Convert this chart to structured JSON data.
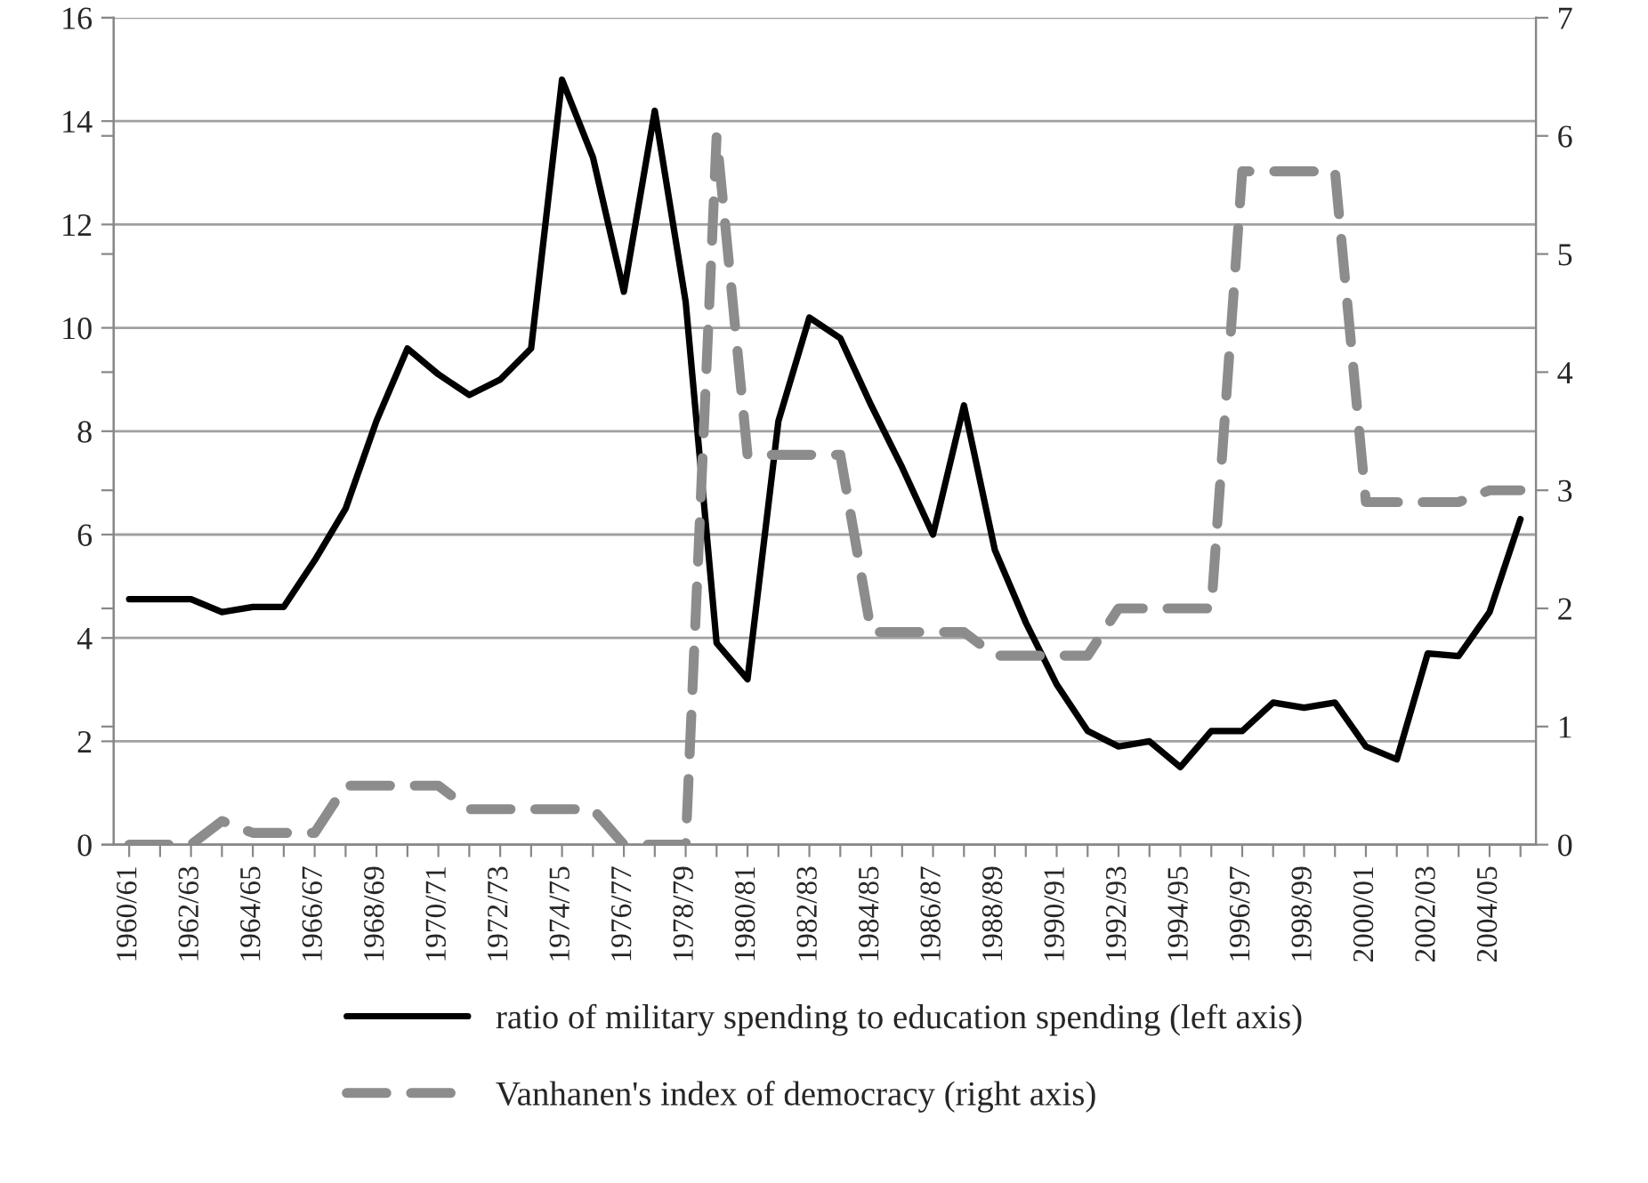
{
  "chart_data": {
    "type": "line",
    "categories": [
      "1960/61",
      null,
      "1962/63",
      null,
      "1964/65",
      null,
      "1966/67",
      null,
      "1968/69",
      null,
      "1970/71",
      null,
      "1972/73",
      null,
      "1974/75",
      null,
      "1976/77",
      null,
      "1978/79",
      null,
      "1980/81",
      null,
      "1982/83",
      null,
      "1984/85",
      null,
      "1986/87",
      null,
      "1988/89",
      null,
      "1990/91",
      null,
      "1992/93",
      null,
      "1994/95",
      null,
      "1996/97",
      null,
      "1998/99",
      null,
      "2000/01",
      null,
      "2002/03",
      null,
      "2004/05",
      null
    ],
    "series": [
      {
        "name": "ratio of military spending to education spending (left axis)",
        "color": "#000000",
        "line_style": "solid",
        "values": [
          4.75,
          4.75,
          4.75,
          4.5,
          4.6,
          4.6,
          5.5,
          6.5,
          8.2,
          9.6,
          9.1,
          8.7,
          9.0,
          9.6,
          14.8,
          13.3,
          10.7,
          14.2,
          10.5,
          3.9,
          3.2,
          8.2,
          10.2,
          9.8,
          8.5,
          7.3,
          6.0,
          8.5,
          5.7,
          4.3,
          3.1,
          2.2,
          1.9,
          2.0,
          1.5,
          2.2,
          2.2,
          2.75,
          2.65,
          2.75,
          1.9,
          1.65,
          3.7,
          3.65,
          4.5,
          6.3
        ]
      },
      {
        "name": "Vanhanen's index of democracy (right axis)",
        "color": "#8c8c8c",
        "line_style": "dashed",
        "axis": "y2",
        "values": [
          0,
          0,
          0,
          0.2,
          0.1,
          0.1,
          0.1,
          0.5,
          0.5,
          0.5,
          0.5,
          0.3,
          0.3,
          0.3,
          0.3,
          0.3,
          0,
          0,
          0,
          6.0,
          3.3,
          3.3,
          3.3,
          3.3,
          1.8,
          1.8,
          1.8,
          1.8,
          1.6,
          1.6,
          1.6,
          1.6,
          2.0,
          2.0,
          2.0,
          2.0,
          5.7,
          5.7,
          5.7,
          5.7,
          2.9,
          2.9,
          2.9,
          2.9,
          3.0,
          3.0
        ]
      }
    ],
    "ylim": [
      0,
      16
    ],
    "yticks": [
      0,
      2,
      4,
      6,
      8,
      10,
      12,
      14,
      16
    ],
    "y2lim": [
      0,
      7
    ],
    "y2ticks": [
      0,
      1,
      2,
      3,
      4,
      5,
      6,
      7
    ],
    "grid": "y",
    "legend": "bottom",
    "marker": "none"
  }
}
